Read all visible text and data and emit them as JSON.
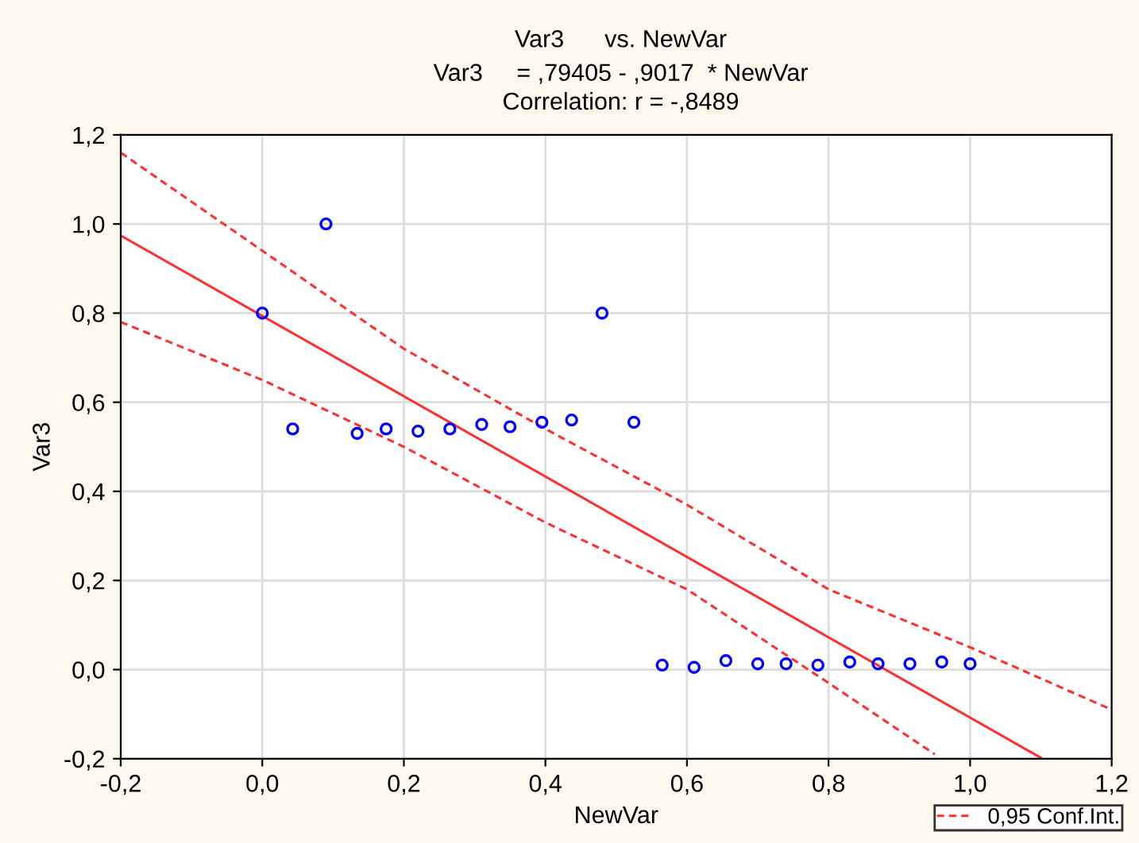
{
  "chart_data": {
    "type": "scatter",
    "title": "Var3      vs. NewVar",
    "subtitle": "Var3     = ,79405 - ,9017  * NewVar\nCorrelation: r = -,8489",
    "xlabel": "NewVar",
    "ylabel": "Var3",
    "xlim": [
      -0.2,
      1.2
    ],
    "ylim": [
      -0.2,
      1.2
    ],
    "xticks": [
      {
        "value": -0.2,
        "label": "-0,2"
      },
      {
        "value": 0,
        "label": "0,0"
      },
      {
        "value": 0.2,
        "label": "0,2"
      },
      {
        "value": 0.4,
        "label": "0,4"
      },
      {
        "value": 0.6,
        "label": "0,6"
      },
      {
        "value": 0.8,
        "label": "0,8"
      },
      {
        "value": 1.0,
        "label": "1,0"
      },
      {
        "value": 1.2,
        "label": "1,2"
      }
    ],
    "yticks": [
      {
        "value": -0.2,
        "label": "-0,2"
      },
      {
        "value": 0,
        "label": "0,0"
      },
      {
        "value": 0.2,
        "label": "0,2"
      },
      {
        "value": 0.4,
        "label": "0,4"
      },
      {
        "value": 0.6,
        "label": "0,6"
      },
      {
        "value": 0.8,
        "label": "0,8"
      },
      {
        "value": 1.0,
        "label": "1,0"
      },
      {
        "value": 1.2,
        "label": "1,2"
      }
    ],
    "grid": true,
    "legend": "bottom right",
    "series": [
      {
        "marker": "circle",
        "color": "#0000ff",
        "x": [
          0.0,
          0.043,
          0.09,
          0.134,
          0.175,
          0.22,
          0.265,
          0.31,
          0.35,
          0.395,
          0.437,
          0.48,
          0.525,
          0.565,
          0.61,
          0.655,
          0.7,
          0.74,
          0.785,
          0.83,
          0.87,
          0.915,
          0.96,
          1.0
        ],
        "values": [
          0.8,
          0.54,
          1.0,
          0.53,
          0.54,
          0.535,
          0.54,
          0.55,
          0.545,
          0.555,
          0.56,
          0.8,
          0.555,
          0.01,
          0.005,
          0.02,
          0.013,
          0.013,
          0.01,
          0.017,
          0.013,
          0.013,
          0.017,
          0.013
        ]
      },
      {
        "type": "line",
        "color": "#ff3030",
        "line_style": "solid",
        "marker": "none",
        "x": [
          -0.2,
          1.1
        ],
        "values": [
          0.974,
          -0.198
        ]
      },
      {
        "type": "line",
        "name": "0,95 Conf.Int.",
        "color": "#ff3030",
        "line_style": "dashed",
        "marker": "none",
        "x": [
          -0.2,
          0,
          0.2,
          0.4,
          0.6,
          0.8,
          1.0,
          1.2
        ],
        "values": [
          1.16,
          0.94,
          0.72,
          0.54,
          0.37,
          0.18,
          0.05,
          -0.09
        ]
      },
      {
        "type": "line",
        "color": "#ff3030",
        "line_style": "dashed",
        "marker": "none",
        "x": [
          -0.2,
          0,
          0.2,
          0.4,
          0.6,
          0.8,
          0.95
        ],
        "values": [
          0.78,
          0.65,
          0.5,
          0.33,
          0.18,
          -0.03,
          -0.19
        ]
      }
    ]
  }
}
